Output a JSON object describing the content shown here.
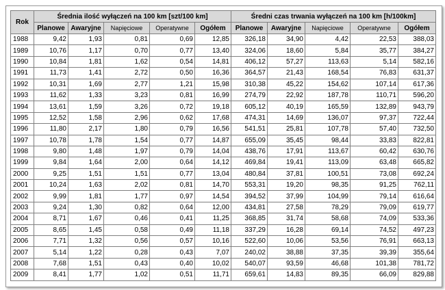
{
  "table": {
    "year_header": "Rok",
    "group1_header": "Średnia ilość wyłączeń na 100 km [szt/100 km]",
    "group2_header": "Średni czas trwania wyłączeń na 100 km [h/100km]",
    "sub_headers": [
      "Planowe",
      "Awaryjne",
      "Napięciowe",
      "Operatywne",
      "Ogółem",
      "Planowe",
      "Awaryjne",
      "Napięciowe",
      "Operatywne",
      "Ogółem"
    ],
    "rows": [
      [
        "1988",
        "9,42",
        "1,93",
        "0,81",
        "0,69",
        "12,85",
        "326,18",
        "34,90",
        "4,42",
        "22,53",
        "388,03"
      ],
      [
        "1989",
        "10,76",
        "1,17",
        "0,70",
        "0,77",
        "13,40",
        "324,06",
        "18,60",
        "5,84",
        "35,77",
        "384,27"
      ],
      [
        "1990",
        "10,84",
        "1,81",
        "1,62",
        "0,54",
        "14,81",
        "406,12",
        "57,27",
        "113,63",
        "5,14",
        "582,16"
      ],
      [
        "1991",
        "11,73",
        "1,41",
        "2,72",
        "0,50",
        "16,36",
        "364,57",
        "21,43",
        "168,54",
        "76,83",
        "631,37"
      ],
      [
        "1992",
        "10,31",
        "1,69",
        "2,77",
        "1,21",
        "15,98",
        "310,38",
        "45,22",
        "154,62",
        "107,14",
        "617,36"
      ],
      [
        "1993",
        "11,62",
        "1,33",
        "3,23",
        "0,81",
        "16,99",
        "274,79",
        "22,92",
        "187,78",
        "110,71",
        "596,20"
      ],
      [
        "1994",
        "13,61",
        "1,59",
        "3,26",
        "0,72",
        "19,18",
        "605,12",
        "40,19",
        "165,59",
        "132,89",
        "943,79"
      ],
      [
        "1995",
        "12,52",
        "1,58",
        "2,96",
        "0,62",
        "17,68",
        "474,31",
        "14,69",
        "136,07",
        "97,37",
        "722,44"
      ],
      [
        "1996",
        "11,80",
        "2,17",
        "1,80",
        "0,79",
        "16,56",
        "541,51",
        "25,81",
        "107,78",
        "57,40",
        "732,50"
      ],
      [
        "1997",
        "10,78",
        "1,78",
        "1,54",
        "0,77",
        "14,87",
        "655,09",
        "35,45",
        "98,44",
        "33,83",
        "822,81"
      ],
      [
        "1998",
        "9,80",
        "1,48",
        "1,97",
        "0,79",
        "14,04",
        "438,76",
        "17,91",
        "113,67",
        "60,42",
        "630,76"
      ],
      [
        "1999",
        "9,84",
        "1,64",
        "2,00",
        "0,64",
        "14,12",
        "469,84",
        "19,41",
        "113,09",
        "63,48",
        "665,82"
      ],
      [
        "2000",
        "9,25",
        "1,51",
        "1,51",
        "0,77",
        "13,04",
        "480,84",
        "37,81",
        "100,51",
        "73,08",
        "692,24"
      ],
      [
        "2001",
        "10,24",
        "1,63",
        "2,02",
        "0,81",
        "14,70",
        "553,31",
        "19,20",
        "98,35",
        "91,25",
        "762,11"
      ],
      [
        "2002",
        "9,99",
        "1,81",
        "1,77",
        "0,97",
        "14,54",
        "394,52",
        "37,99",
        "104,99",
        "79,14",
        "616,64"
      ],
      [
        "2003",
        "9,24",
        "1,30",
        "0,82",
        "0,64",
        "12,00",
        "434,81",
        "27,58",
        "78,29",
        "79,09",
        "619,77"
      ],
      [
        "2004",
        "8,71",
        "1,67",
        "0,46",
        "0,41",
        "11,25",
        "368,85",
        "31,74",
        "58,68",
        "74,09",
        "533,36"
      ],
      [
        "2005",
        "8,65",
        "1,45",
        "0,58",
        "0,49",
        "11,18",
        "337,29",
        "16,28",
        "69,14",
        "74,52",
        "497,23"
      ],
      [
        "2006",
        "7,71",
        "1,32",
        "0,56",
        "0,57",
        "10,16",
        "522,60",
        "10,06",
        "53,56",
        "76,91",
        "663,13"
      ],
      [
        "2007",
        "5,14",
        "1,22",
        "0,28",
        "0,43",
        "7,07",
        "240,02",
        "38,88",
        "37,35",
        "39,39",
        "355,64"
      ],
      [
        "2008",
        "7,68",
        "1,51",
        "0,43",
        "0,40",
        "10,02",
        "540,07",
        "93,59",
        "46,68",
        "101,38",
        "781,72"
      ],
      [
        "2009",
        "8,41",
        "1,77",
        "1,02",
        "0,51",
        "11,71",
        "659,61",
        "14,83",
        "89,35",
        "66,09",
        "829,88"
      ]
    ]
  }
}
